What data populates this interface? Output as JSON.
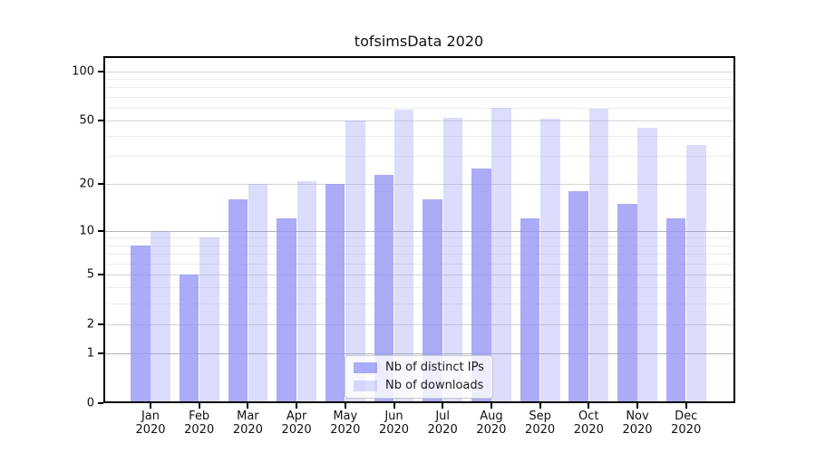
{
  "chart_data": {
    "type": "bar",
    "title": "tofsimsData 2020",
    "xlabel": "",
    "ylabel": "",
    "y_scale": "log-like (log(1+x)), axis starts at 0",
    "y_ticks": [
      0,
      1,
      2,
      5,
      10,
      20,
      50,
      100
    ],
    "y_minor_gridlines": [
      3,
      4,
      6,
      7,
      8,
      9,
      30,
      40,
      60,
      70,
      80,
      90
    ],
    "y_emphasized_gridlines": [
      1,
      10
    ],
    "ylim": [
      0,
      123
    ],
    "grid": true,
    "categories": [
      "Jan 2020",
      "Feb 2020",
      "Mar 2020",
      "Apr 2020",
      "May 2020",
      "Jun 2020",
      "Jul 2020",
      "Aug 2020",
      "Sep 2020",
      "Oct 2020",
      "Nov 2020",
      "Dec 2020"
    ],
    "series": [
      {
        "name": "Nb of distinct IPs",
        "color": "rgba(150,150,245,0.80)",
        "values": [
          8,
          5,
          16,
          12,
          20,
          23,
          16,
          25,
          12,
          18,
          15,
          12
        ]
      },
      {
        "name": "Nb of downloads",
        "color": "rgba(150,150,245,0.33)",
        "values": [
          10,
          9,
          20,
          21,
          50,
          58,
          52,
          60,
          51,
          59,
          45,
          35
        ]
      }
    ],
    "legend_position": "bottom-center",
    "colors": {
      "axis": "#000000",
      "grid_minor": "#ececec",
      "grid_labeled": "#d4d4d4",
      "grid_emphasized": "#b3b3b3",
      "background": "#ffffff"
    }
  }
}
